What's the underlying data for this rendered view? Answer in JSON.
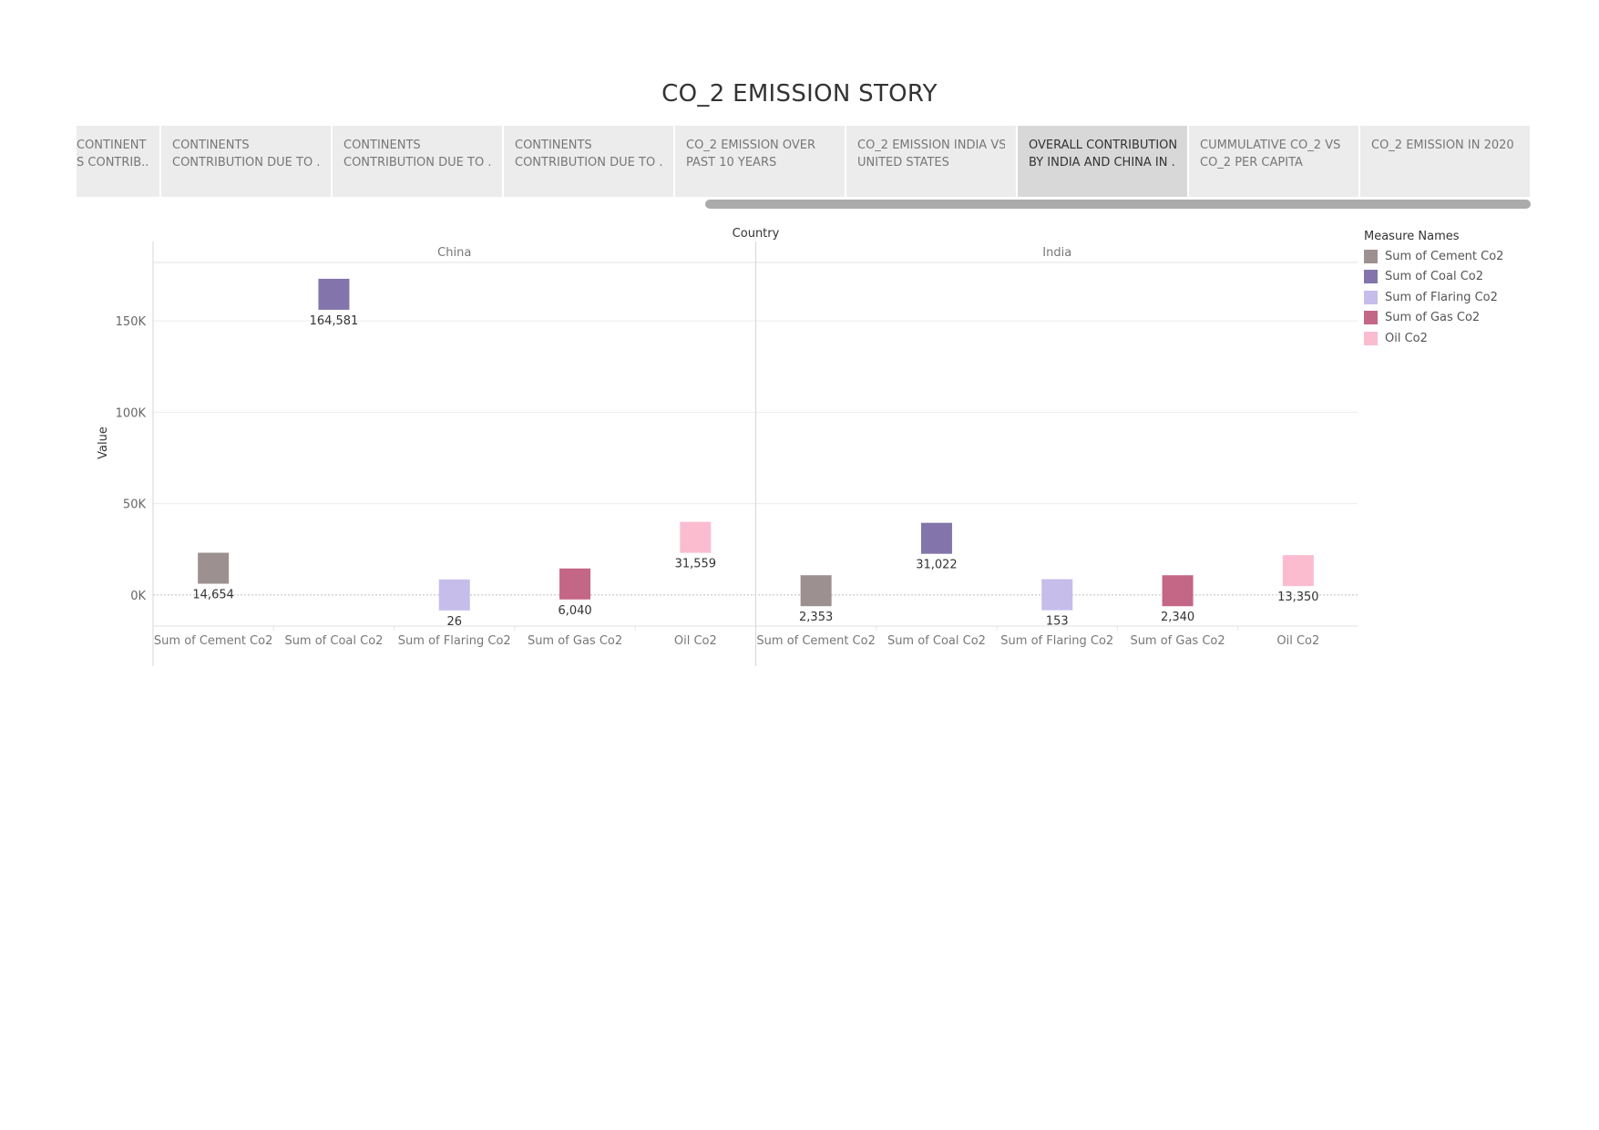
{
  "story": {
    "title": "CO_2 EMISSION STORY"
  },
  "tabs": [
    {
      "lines": [
        "CONTINENT",
        "S CONTRIB.."
      ],
      "selected": false,
      "partial": true
    },
    {
      "lines": [
        "CONTINENTS",
        "CONTRIBUTION DUE TO .."
      ],
      "selected": false
    },
    {
      "lines": [
        "CONTINENTS",
        "CONTRIBUTION DUE TO .."
      ],
      "selected": false
    },
    {
      "lines": [
        "CONTINENTS",
        "CONTRIBUTION DUE TO .."
      ],
      "selected": false
    },
    {
      "lines": [
        "CO_2 EMISSION OVER",
        "PAST 10 YEARS"
      ],
      "selected": false
    },
    {
      "lines": [
        "CO_2 EMISSION INDIA VS",
        "UNITED STATES"
      ],
      "selected": false
    },
    {
      "lines": [
        "OVERALL CONTRIBUTION",
        "BY INDIA AND CHINA IN .."
      ],
      "selected": true
    },
    {
      "lines": [
        "CUMMULATIVE CO_2 VS",
        "CO_2 PER CAPITA"
      ],
      "selected": false
    },
    {
      "lines": [
        "CO_2 EMISSION IN 2020",
        ""
      ],
      "selected": false
    }
  ],
  "chart_data": {
    "type": "scatter",
    "mark": "square",
    "column_header": "Country",
    "ylabel": "Value",
    "ylim": [
      -17000,
      182000
    ],
    "yticks": [
      0,
      50000,
      100000,
      150000
    ],
    "ytick_labels": [
      "0K",
      "50K",
      "100K",
      "150K"
    ],
    "grid": true,
    "legend_position": "right",
    "legend_title": "Measure Names",
    "categories": [
      "Sum of Cement Co2",
      "Sum of Coal Co2",
      "Sum of Flaring Co2",
      "Sum of Gas Co2",
      "Oil Co2"
    ],
    "colors": [
      "#9c9190",
      "#8375ab",
      "#c6bdeb",
      "#c46686",
      "#fbbcd0"
    ],
    "panels": [
      {
        "country": "China",
        "values": [
          14654,
          164581,
          26,
          6040,
          31559
        ],
        "value_labels": [
          "14,654",
          "164,581",
          "26",
          "6,040",
          "31,559"
        ]
      },
      {
        "country": "India",
        "values": [
          2353,
          31022,
          153,
          2340,
          13350
        ],
        "value_labels": [
          "2,353",
          "31,022",
          "153",
          "2,340",
          "13,350"
        ]
      }
    ]
  }
}
